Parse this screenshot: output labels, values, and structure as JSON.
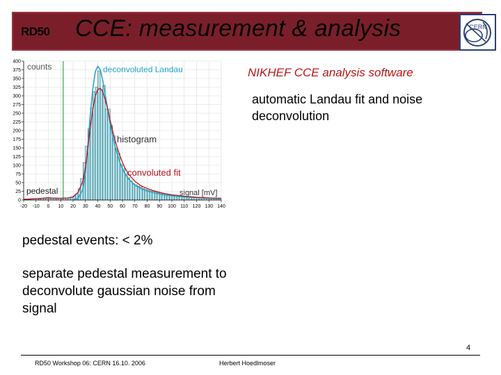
{
  "header": {
    "logo_text": "RD50",
    "title": "CCE: measurement & analysis",
    "cern_logo_text": "CERN"
  },
  "slide": {
    "software_note": "NIKHEF CCE analysis software",
    "fit_note": "automatic Landau fit and noise deconvolution",
    "pedestal_note": "pedestal events: < 2%",
    "separate_note": "separate pedestal measurement to deconvolute gaussian noise from signal",
    "page_number": "4"
  },
  "footer": {
    "left": "RD50 Workshop 06: CERN 16.10. 2006",
    "author": "Herbert Hoedlmoser"
  },
  "colors": {
    "title_bar": "#7a1f2a",
    "accent_red": "#b81818",
    "hist_fill": "#a9e3ee",
    "deconv_curve": "#27a6c9",
    "fit_curve": "#c0141c",
    "cut_line": "#2ea84a"
  },
  "chart_data": {
    "type": "bar",
    "title": "",
    "xlabel": "signal [mV]",
    "ylabel": "counts",
    "xlim": [
      -20,
      140
    ],
    "ylim": [
      0,
      400
    ],
    "x_ticks": [
      -20,
      -10,
      0,
      10,
      20,
      30,
      40,
      50,
      60,
      70,
      80,
      90,
      100,
      110,
      120,
      130,
      140
    ],
    "y_ticks": [
      0,
      25,
      50,
      75,
      100,
      125,
      150,
      175,
      200,
      225,
      250,
      275,
      300,
      325,
      350,
      375,
      400
    ],
    "grid": true,
    "cut_x": 12,
    "bin_width": 2,
    "histogram": {
      "name": "histogram",
      "bin_centers": [
        -19,
        -17,
        -15,
        -13,
        -11,
        -9,
        -7,
        -5,
        -3,
        -1,
        1,
        3,
        5,
        7,
        9,
        11,
        13,
        15,
        17,
        19,
        21,
        23,
        25,
        27,
        29,
        31,
        33,
        35,
        37,
        39,
        41,
        43,
        45,
        47,
        49,
        51,
        53,
        55,
        57,
        59,
        61,
        63,
        65,
        67,
        69,
        71,
        73,
        75,
        77,
        79,
        81,
        83,
        85,
        87,
        89,
        91,
        93,
        95,
        97,
        99,
        101,
        103,
        105,
        107,
        109,
        111,
        113,
        115,
        117,
        119,
        121,
        123,
        125,
        127,
        129,
        131,
        133,
        135,
        137,
        139
      ],
      "counts": [
        1,
        2,
        2,
        3,
        4,
        4,
        3,
        5,
        6,
        7,
        7,
        6,
        5,
        4,
        5,
        4,
        5,
        6,
        7,
        9,
        12,
        18,
        32,
        62,
        108,
        155,
        205,
        265,
        312,
        325,
        372,
        318,
        330,
        262,
        262,
        215,
        185,
        148,
        134,
        102,
        90,
        76,
        64,
        55,
        46,
        44,
        40,
        37,
        33,
        30,
        28,
        26,
        25,
        23,
        21,
        20,
        18,
        18,
        16,
        15,
        14,
        14,
        13,
        12,
        11,
        10,
        10,
        9,
        9,
        8,
        8,
        7,
        7,
        6,
        6,
        6,
        5,
        5,
        4,
        4
      ]
    },
    "series": [
      {
        "name": "deconvoluted Landau",
        "x": [
          20,
          24,
          28,
          30,
          32,
          34,
          36,
          38,
          40,
          42,
          44,
          46,
          48,
          50,
          52,
          54,
          56,
          58,
          60,
          62,
          65,
          70,
          75,
          80,
          85,
          90,
          95,
          100,
          110,
          120,
          130,
          140
        ],
        "y": [
          0,
          5,
          30,
          80,
          160,
          250,
          320,
          370,
          385,
          375,
          345,
          305,
          262,
          220,
          185,
          155,
          130,
          108,
          90,
          76,
          60,
          43,
          33,
          26,
          21,
          17,
          14,
          12,
          9,
          7,
          5,
          4
        ]
      },
      {
        "name": "convoluted fit",
        "x": [
          -20,
          -10,
          0,
          10,
          16,
          20,
          24,
          28,
          30,
          32,
          34,
          36,
          38,
          40,
          42,
          44,
          46,
          48,
          50,
          52,
          54,
          56,
          58,
          60,
          62,
          65,
          70,
          75,
          80,
          85,
          90,
          95,
          100,
          110,
          120,
          130,
          140
        ],
        "y": [
          2,
          4,
          6,
          5,
          6,
          9,
          22,
          55,
          95,
          150,
          210,
          262,
          300,
          318,
          322,
          312,
          290,
          262,
          230,
          200,
          172,
          148,
          127,
          108,
          92,
          74,
          54,
          41,
          33,
          27,
          22,
          18,
          15,
          11,
          8,
          6,
          5
        ]
      }
    ],
    "annotations": [
      "counts",
      "deconvoluted Landau",
      "histogram",
      "convoluted fit",
      "pedestal",
      "signal [mV]"
    ]
  }
}
